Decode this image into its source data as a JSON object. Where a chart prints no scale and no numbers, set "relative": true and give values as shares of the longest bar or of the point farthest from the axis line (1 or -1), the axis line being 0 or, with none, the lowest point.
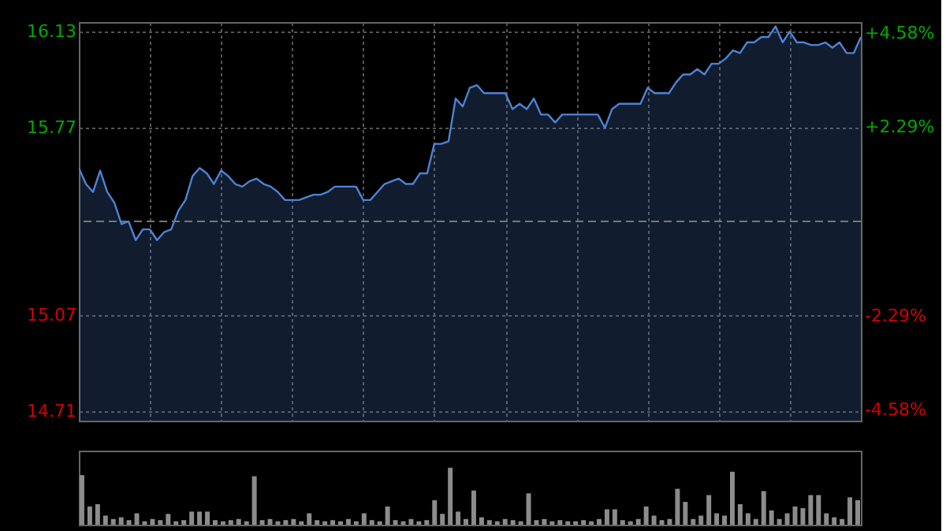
{
  "chart_data": [
    {
      "type": "area",
      "categories": [
        null,
        null,
        null,
        null,
        null,
        null,
        null,
        null,
        null,
        null,
        null,
        null,
        null,
        null,
        null,
        null,
        null,
        null,
        null,
        null,
        null,
        null,
        null,
        null,
        null,
        null,
        null,
        null,
        null,
        null,
        null,
        null,
        null,
        null,
        null,
        null,
        null,
        null,
        null,
        null,
        null,
        null,
        null,
        null,
        null,
        null,
        null,
        null,
        null,
        null,
        null,
        null,
        null,
        null,
        null,
        null,
        null,
        null,
        null,
        null,
        null,
        null,
        null,
        null,
        null,
        null,
        null,
        null,
        null,
        null,
        null,
        null,
        null,
        null,
        null,
        null,
        null,
        null,
        null,
        null,
        null,
        null,
        null,
        null,
        null,
        null,
        null,
        null,
        null,
        null,
        null,
        null,
        null,
        null,
        null,
        null,
        null,
        null,
        null,
        null,
        null,
        null,
        null,
        null,
        null,
        null,
        null,
        null,
        null,
        null,
        null
      ],
      "ylim": [
        14.674,
        16.166
      ],
      "yticks": [
        14.71,
        15.07,
        15.77,
        16.13
      ],
      "y2lim": [
        -4.84,
        4.84
      ],
      "y2ticks": [
        {
          "value": -4.58,
          "label": "-4.58%"
        },
        {
          "value": -2.29,
          "label": "-2.29%"
        },
        {
          "value": 2.29,
          "label": "+2.29%"
        },
        {
          "value": 4.58,
          "label": "+4.58%"
        }
      ],
      "grid": true,
      "tick_labels": "y",
      "marker": "none",
      "line_style": "solid",
      "ref_lines": [
        {
          "axis": "y2",
          "value": 0,
          "line_style": "dashed",
          "color": "#777777"
        }
      ],
      "series": [
        {
          "color": "#4f82d4",
          "values": [
            15.62,
            15.56,
            15.53,
            15.61,
            15.53,
            15.49,
            15.41,
            15.42,
            15.35,
            15.39,
            15.39,
            15.35,
            15.38,
            15.39,
            15.46,
            15.5,
            15.59,
            15.62,
            15.6,
            15.56,
            15.61,
            15.59,
            15.56,
            15.55,
            15.57,
            15.58,
            15.56,
            15.55,
            15.53,
            15.5,
            15.5,
            15.5,
            15.51,
            15.52,
            15.52,
            15.53,
            15.55,
            15.55,
            15.55,
            15.55,
            15.5,
            15.5,
            15.53,
            15.56,
            15.57,
            15.58,
            15.56,
            15.56,
            15.6,
            15.6,
            15.71,
            15.71,
            15.72,
            15.88,
            15.85,
            15.92,
            15.93,
            15.9,
            15.9,
            15.9,
            15.9,
            15.84,
            15.86,
            15.84,
            15.88,
            15.82,
            15.82,
            15.79,
            15.82,
            15.82,
            15.82,
            15.82,
            15.82,
            15.82,
            15.77,
            15.84,
            15.86,
            15.86,
            15.86,
            15.86,
            15.92,
            15.9,
            15.9,
            15.9,
            15.94,
            15.97,
            15.97,
            15.99,
            15.97,
            16.01,
            16.01,
            16.03,
            16.06,
            16.05,
            16.09,
            16.09,
            16.11,
            16.11,
            16.15,
            16.09,
            16.13,
            16.09,
            16.09,
            16.08,
            16.08,
            16.09,
            16.07,
            16.09,
            16.05,
            16.05,
            16.11
          ]
        }
      ]
    },
    {
      "type": "bar",
      "relative": true,
      "categories": [
        null,
        null,
        null,
        null,
        null,
        null,
        null,
        null,
        null,
        null,
        null,
        null,
        null,
        null,
        null,
        null,
        null,
        null,
        null,
        null,
        null,
        null,
        null,
        null,
        null,
        null,
        null,
        null,
        null,
        null,
        null,
        null,
        null,
        null,
        null,
        null,
        null,
        null,
        null,
        null,
        null,
        null,
        null,
        null,
        null,
        null,
        null,
        null,
        null,
        null,
        null,
        null,
        null,
        null,
        null,
        null,
        null,
        null,
        null,
        null,
        null,
        null,
        null,
        null,
        null,
        null,
        null,
        null,
        null,
        null,
        null,
        null,
        null,
        null,
        null,
        null,
        null,
        null,
        null,
        null,
        null,
        null,
        null,
        null,
        null,
        null,
        null,
        null,
        null,
        null,
        null,
        null,
        null,
        null,
        null,
        null,
        null,
        null,
        null,
        null
      ],
      "color": "#8c8c8c",
      "values": [
        0.87,
        0.32,
        0.36,
        0.16,
        0.1,
        0.13,
        0.08,
        0.2,
        0.06,
        0.1,
        0.08,
        0.19,
        0.06,
        0.08,
        0.23,
        0.23,
        0.23,
        0.08,
        0.06,
        0.08,
        0.1,
        0.06,
        0.85,
        0.08,
        0.1,
        0.06,
        0.08,
        0.1,
        0.06,
        0.2,
        0.08,
        0.06,
        0.08,
        0.06,
        0.1,
        0.06,
        0.2,
        0.08,
        0.06,
        0.32,
        0.08,
        0.06,
        0.1,
        0.06,
        0.08,
        0.43,
        0.19,
        1,
        0.23,
        0.1,
        0.6,
        0.13,
        0.08,
        0.06,
        0.1,
        0.08,
        0.06,
        0.55,
        0.08,
        0.1,
        0.06,
        0.08,
        0.06,
        0.06,
        0.08,
        0.06,
        0.1,
        0.27,
        0.27,
        0.08,
        0.06,
        0.1,
        0.32,
        0.16,
        0.08,
        0.1,
        0.63,
        0.4,
        0.1,
        0.16,
        0.52,
        0.2,
        0.16,
        0.93,
        0.36,
        0.2,
        0.1,
        0.59,
        0.25,
        0.1,
        0.2,
        0.32,
        0.29,
        0.52,
        0.52,
        0.2,
        0.13,
        0.1,
        0.48,
        0.43
      ]
    }
  ]
}
